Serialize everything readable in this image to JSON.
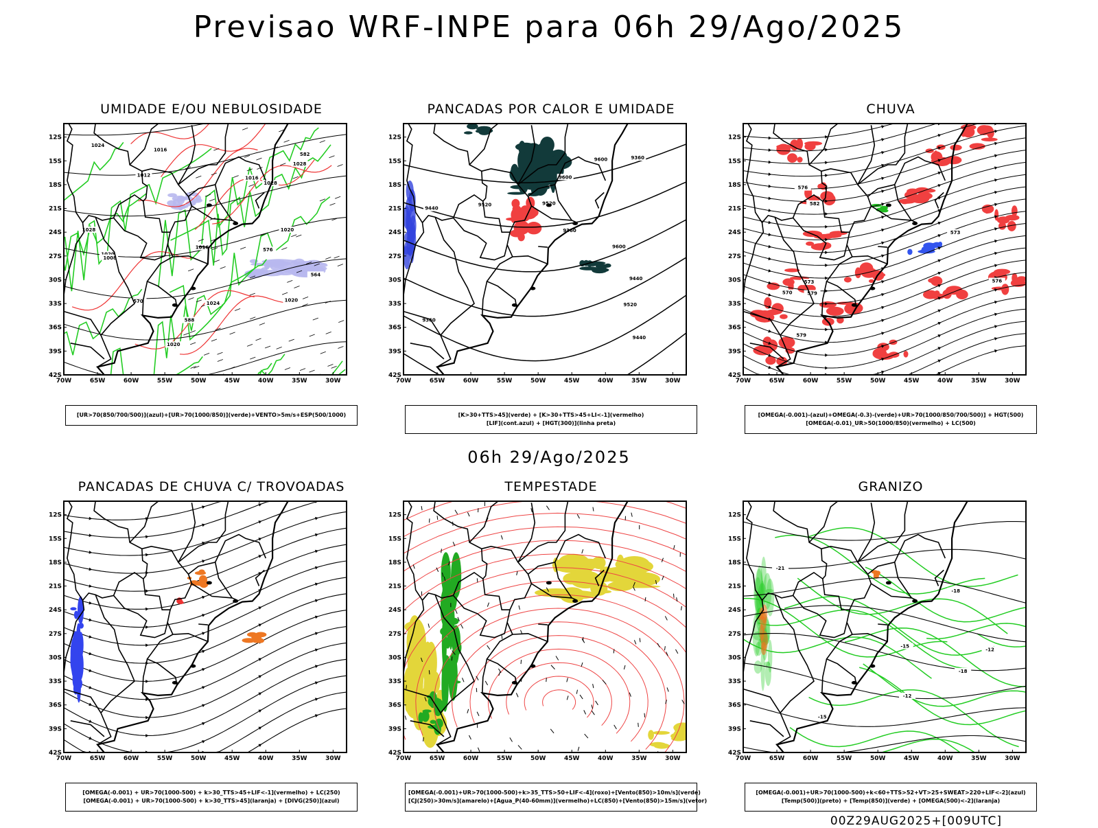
{
  "main_title": "Previsao WRF-INPE  para 06h 29/Ago/2025",
  "mid_title": "06h 29/Ago/2025",
  "footer": "00Z29AUG2025+[009UTC]",
  "axes": {
    "lat_labels": [
      "12S",
      "15S",
      "18S",
      "21S",
      "24S",
      "27S",
      "30S",
      "33S",
      "36S",
      "39S",
      "42S"
    ],
    "lon_labels": [
      "70W",
      "65W",
      "60W",
      "55W",
      "50W",
      "45W",
      "40W",
      "35W",
      "30W"
    ]
  },
  "panels": [
    {
      "title": "UMIDADE E/OU NEBULOSIDADE",
      "legend": [
        "[UR>70(850/700/500)](azul)+[UR>70(1000/850)](verde)+VENTO>5m/s+ESP(500/1000)"
      ],
      "contour_labels": [
        "1016",
        "1020",
        "1016",
        "1020",
        "1016",
        "1020",
        "1024",
        "1020",
        "1028",
        "1008",
        "1024",
        "1028",
        "1028",
        "1012",
        "564",
        "570",
        "576",
        "582",
        "588"
      ]
    },
    {
      "title": "PANCADAS POR CALOR E UMIDADE",
      "legend": [
        "[K>30+TTS>45](verde) + [K>30+TTS>45+LI<-1](vermelho)",
        "[LIF](cont.azul) + [HGT(300)](linha preta)"
      ],
      "contour_labels": [
        "9600",
        "9600",
        "9600",
        "9520",
        "9520",
        "9440",
        "9440",
        "9360",
        "9440",
        "9520",
        "9360",
        "9360"
      ]
    },
    {
      "title": "CHUVA",
      "legend": [
        "[OMEGA(-0.001)-(azul)+OMEGA(-0.3)-(verde)+UR>70(1000/850/700/500)] + HGT(500)",
        "[OMEGA(-0.01)_UR>50(1000/850)(vermelho) + LC(500)"
      ],
      "contour_labels": [
        "582",
        "576",
        "579",
        "573",
        "576",
        "570",
        "579",
        "573"
      ]
    },
    {
      "title": "PANCADAS DE CHUVA C/ TROVOADAS",
      "legend": [
        "[OMEGA(-0.001) + UR>70(1000-500) + k>30_TTS>45+LIF<-1](vermelho) + LC(250)",
        "[OMEGA(-0.001) + UR>70(1000-500) + k>30_TTS>45](laranja) + [DIVG(250)](azul)"
      ],
      "contour_labels": []
    },
    {
      "title": "TEMPESTADE",
      "legend": [
        "[OMEGA(-0.001)+UR>70(1000-500)+k>35_TTS>50+LIF<-4](roxo)+[Vento(850)>10m/s](verde)",
        "[CJ(250)>30m/s](amarelo)+[Agua_P(40-60mm)](vermelho)+LC(850)+[Vento(850)>15m/s](vetor)"
      ],
      "contour_labels": []
    },
    {
      "title": "GRANIZO",
      "legend": [
        "[OMEGA(-0.001)+UR>70(1000-500)+k<60+TTS>52+VT>25+SWEAT>220+LIF<-2](azul)",
        "[Temp(500)](preto) + [Temp(850)](verde) + [OMEGA(500)<-2](laranja)"
      ],
      "contour_labels": [
        "-12",
        "-15",
        "-18",
        "-12",
        "-18",
        "-21",
        "-15"
      ]
    }
  ]
}
